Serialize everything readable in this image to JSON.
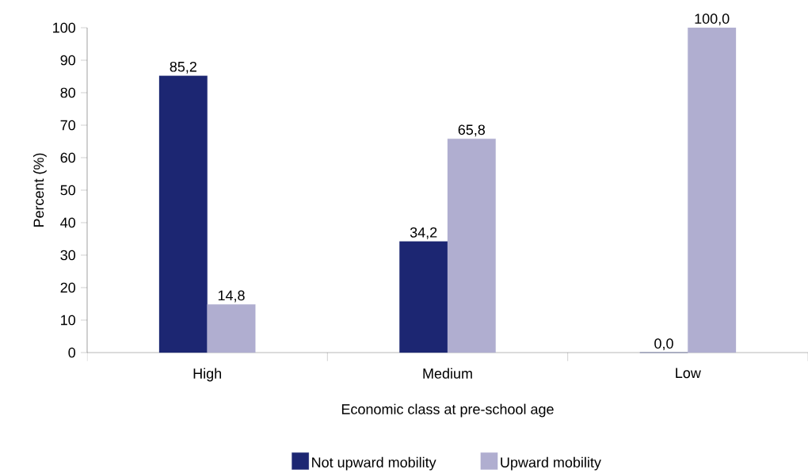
{
  "chart_data": {
    "type": "bar",
    "xlabel": "Economic class at pre-school age",
    "ylabel": "Percent (%)",
    "categories": [
      "High",
      "Medium",
      "Low"
    ],
    "series": [
      {
        "name": "Not upward mobility",
        "color": "#1c2672",
        "values": [
          85.2,
          34.2,
          0.0
        ],
        "value_labels": [
          "85,2",
          "34,2",
          "0,0"
        ]
      },
      {
        "name": "Upward mobility",
        "color": "#b0aed0",
        "values": [
          14.8,
          65.8,
          100.0
        ],
        "value_labels": [
          "14,8",
          "65,8",
          "100,0"
        ]
      }
    ],
    "ylim": [
      0,
      100
    ],
    "yticks": [
      0,
      10,
      20,
      30,
      40,
      50,
      60,
      70,
      80,
      90,
      100
    ],
    "grid": false,
    "legend": "bottom"
  }
}
